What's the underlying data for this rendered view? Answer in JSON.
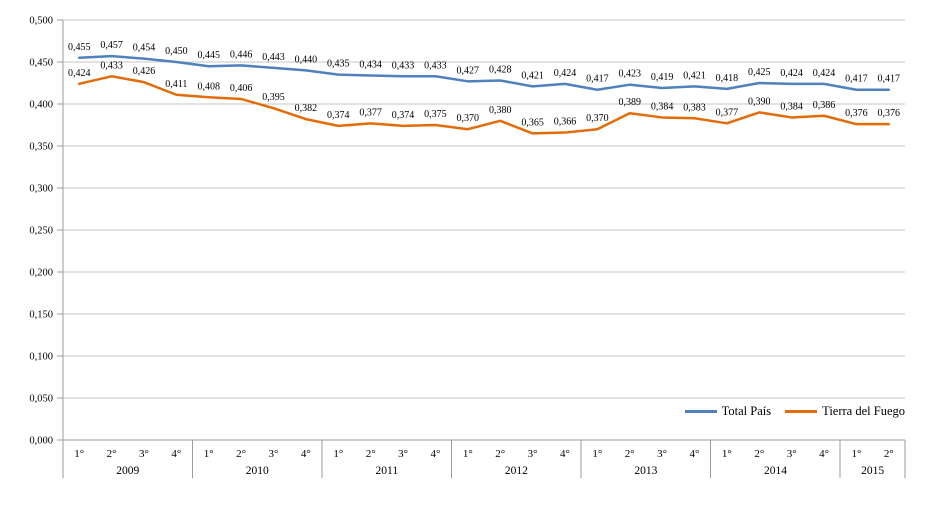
{
  "chart_data": {
    "type": "line",
    "title": "",
    "xlabel": "",
    "ylabel": "",
    "ylim": [
      0,
      0.5
    ],
    "ytick": 0.05,
    "decimal_style": "comma",
    "grid": true,
    "legend_position": "bottom-right",
    "x_groups": [
      {
        "year": "2009",
        "quarters": [
          "1°",
          "2°",
          "3°",
          "4°"
        ]
      },
      {
        "year": "2010",
        "quarters": [
          "1°",
          "2°",
          "3°",
          "4°"
        ]
      },
      {
        "year": "2011",
        "quarters": [
          "1°",
          "2°",
          "3°",
          "4°"
        ]
      },
      {
        "year": "2012",
        "quarters": [
          "1°",
          "2°",
          "3°",
          "4°"
        ]
      },
      {
        "year": "2013",
        "quarters": [
          "1°",
          "2°",
          "3°",
          "4°"
        ]
      },
      {
        "year": "2014",
        "quarters": [
          "1°",
          "2°",
          "3°",
          "4°"
        ]
      },
      {
        "year": "2015",
        "quarters": [
          "1°",
          "2°"
        ]
      }
    ],
    "series": [
      {
        "name": "Total País",
        "color": "#4F81BD",
        "values": [
          0.455,
          0.457,
          0.454,
          0.45,
          0.445,
          0.446,
          0.443,
          0.44,
          0.435,
          0.434,
          0.433,
          0.433,
          0.427,
          0.428,
          0.421,
          0.424,
          0.417,
          0.423,
          0.419,
          0.421,
          0.418,
          0.425,
          0.424,
          0.424,
          0.417,
          0.417
        ]
      },
      {
        "name": "Tierra del Fuego",
        "color": "#E36C09",
        "values": [
          0.424,
          0.433,
          0.426,
          0.411,
          0.408,
          0.406,
          0.395,
          0.382,
          0.374,
          0.377,
          0.374,
          0.375,
          0.37,
          0.38,
          0.365,
          0.366,
          0.37,
          0.389,
          0.384,
          0.383,
          0.377,
          0.39,
          0.384,
          0.386,
          0.376,
          0.376
        ]
      }
    ],
    "colors": {
      "grid": "#C6C6C6",
      "axis": "#9B9B9B",
      "label_text": "#000000"
    }
  }
}
